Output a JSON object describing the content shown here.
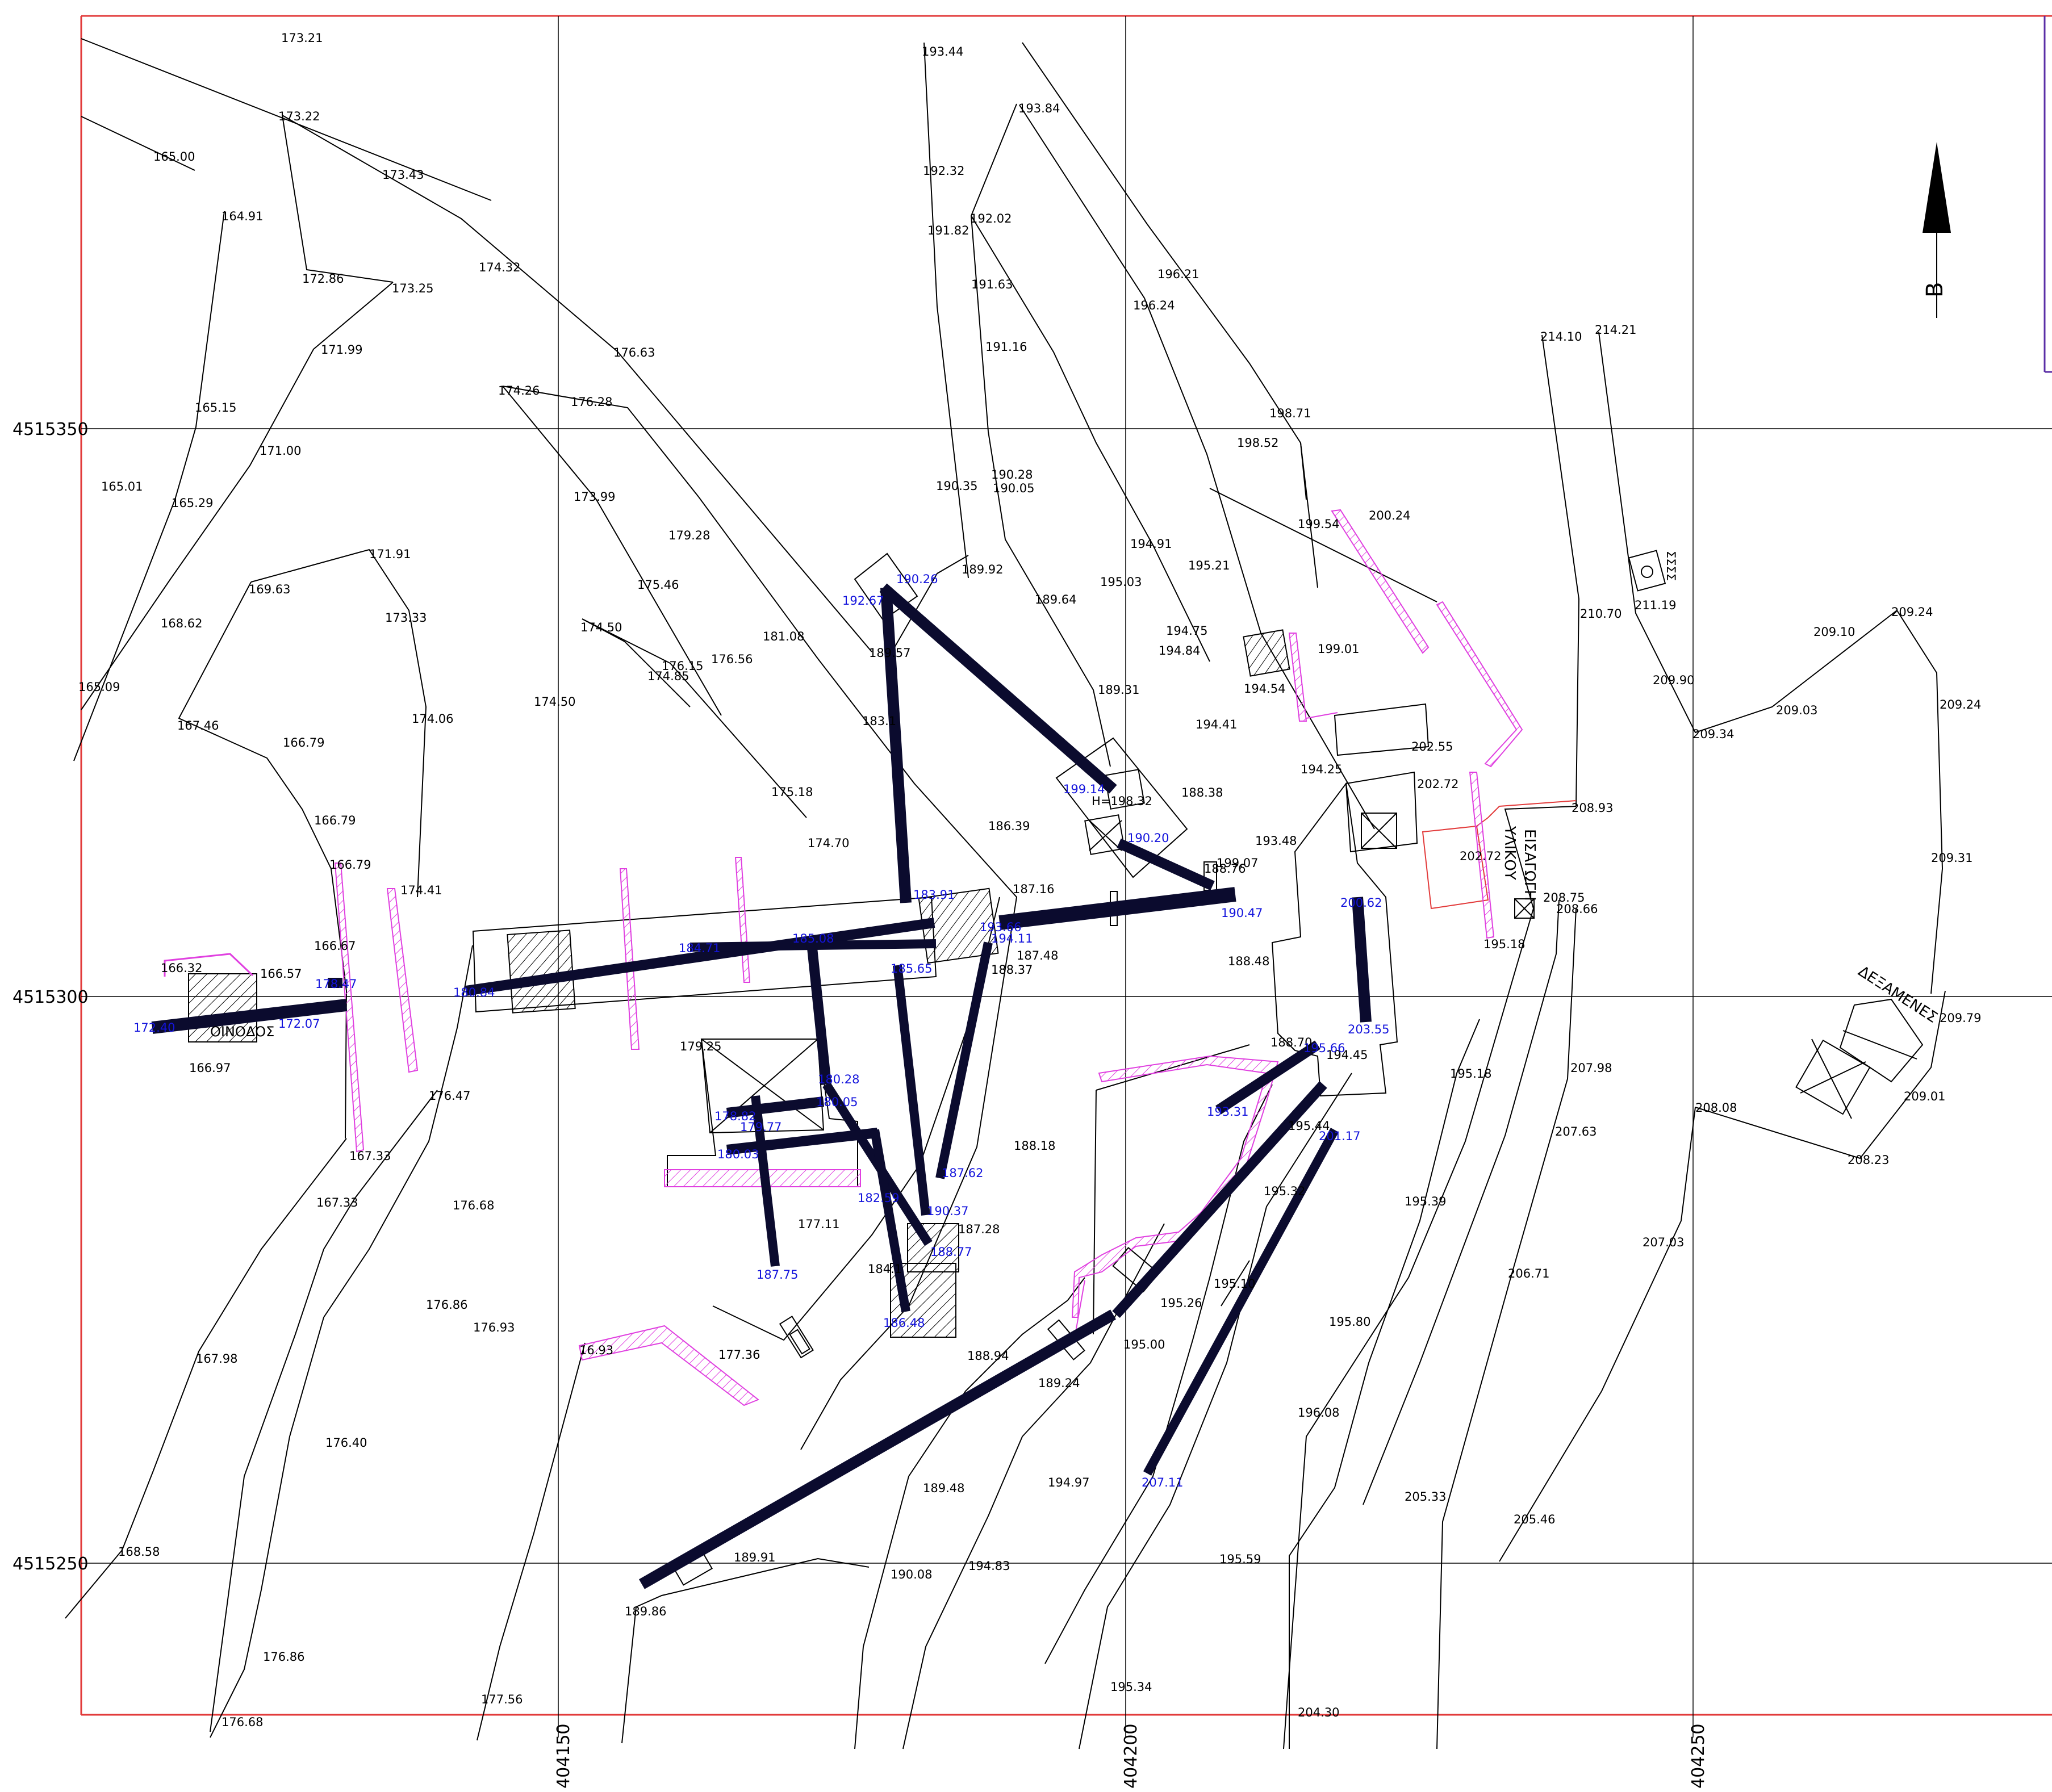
{
  "colors": {
    "frame": "#e23b3b",
    "trench": "#0b0b2e",
    "trench_outline": "#1a1aff",
    "blue_label": "#1414dc",
    "magenta": "#e040e0",
    "grid": "#000000",
    "contour": "#000000",
    "legend_edge": "#5a2ea6"
  },
  "grid": {
    "x_labels": [
      "404150",
      "404200",
      "404250"
    ],
    "y_labels": [
      "4515350",
      "4515300",
      "4515250"
    ]
  },
  "north_arrow": {
    "label": "B",
    "icon": "north-arrow-icon"
  },
  "text_labels": {
    "oinodos": "ΟΙΝΟΔΟΣ",
    "eisagogi": "ΕΙΣΑΓΩΓΗ",
    "ylikou": "ΥΛΙΚΟΥ",
    "dexamenes": "ΔΕΞΑΜΕΝΕΣ",
    "h_label": "H=198.32",
    "qq": "ΣΣΣΣ"
  },
  "spot_heights": [
    "173.21",
    "173.22",
    "165.00",
    "173.43",
    "164.91",
    "174.32",
    "172.86",
    "173.25",
    "171.99",
    "176.63",
    "174.26",
    "176.28",
    "165.15",
    "171.00",
    "165.01",
    "165.29",
    "173.99",
    "179.28",
    "171.91",
    "169.63",
    "175.46",
    "168.62",
    "173.33",
    "174.50",
    "176.15",
    "174.85",
    "176.56",
    "181.08",
    "165.09",
    "174.06",
    "174.50",
    "167.46",
    "166.79",
    "175.18",
    "166.79",
    "174.70",
    "166.79",
    "174.41",
    "166.67",
    "166.32",
    "166.57",
    "166.97",
    "176.47",
    "167.33",
    "167.33",
    "176.68",
    "177.11",
    "176.86",
    "176.93",
    "16.93",
    "177.36",
    "167.98",
    "176.40",
    "168.58",
    "176.86",
    "177.56",
    "176.68",
    "179.25",
    "193.44",
    "193.84",
    "192.32",
    "191.82",
    "192.02",
    "191.63",
    "191.16",
    "196.21",
    "196.24",
    "190.35",
    "190.28",
    "190.05",
    "189.92",
    "189.64",
    "189.57",
    "183.1",
    "186.39",
    "187.16",
    "187.48",
    "188.37",
    "188.18",
    "187.28",
    "184.1",
    "188.94",
    "189.24",
    "189.48",
    "189.91",
    "189.86",
    "190.08",
    "194.83",
    "194.97",
    "198.71",
    "198.52",
    "199.54",
    "200.24",
    "194.91",
    "195.03",
    "195.21",
    "194.75",
    "194.84",
    "189.31",
    "194.54",
    "199.01",
    "194.41",
    "188.38",
    "199.07",
    "188.76",
    "193.48",
    "194.25",
    "202.55",
    "202.72",
    "202.72",
    "188.48",
    "188.70",
    "194.45",
    "195.44",
    "195.32",
    "195.10",
    "195.26",
    "195.00",
    "195.80",
    "196.08",
    "195.59",
    "195.34",
    "204.30",
    "195.18",
    "195.18",
    "195.39",
    "205.33",
    "205.46",
    "214.10",
    "214.21",
    "210.70",
    "211.19",
    "209.90",
    "209.34",
    "209.03",
    "209.10",
    "209.24",
    "209.24",
    "209.31",
    "208.93",
    "208.75",
    "208.66",
    "209.79",
    "209.01",
    "208.23",
    "208.08",
    "207.98",
    "207.63",
    "207.03",
    "206.71"
  ],
  "trench_heights": [
    "190.26",
    "192.67",
    "199.14",
    "190.20",
    "190.47",
    "183.91",
    "193.66",
    "194.11",
    "185.65",
    "187.62",
    "190.37",
    "188.77",
    "186.48",
    "182.59",
    "180.28",
    "180.05",
    "179.77",
    "178.82",
    "180.03",
    "187.75",
    "184.71",
    "185.08",
    "180.84",
    "178.47",
    "172.07",
    "172.40",
    "200.62",
    "203.55",
    "195.66",
    "193.31",
    "201.17",
    "207.11"
  ]
}
